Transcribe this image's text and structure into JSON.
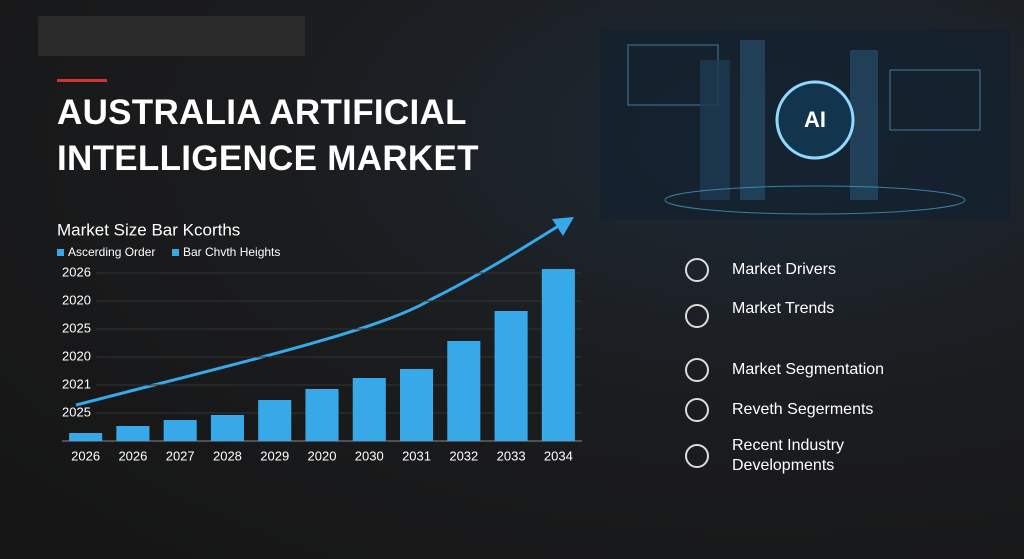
{
  "title": "AUSTRALIA ARTIFICIAL INTELLIGENCE MARKET",
  "image_label": "AI",
  "features": [
    "Market Drivers",
    "Market Trends",
    "Market Segmentation",
    "Reveth Segerments",
    "Recent Industry Developments"
  ],
  "chart_data": {
    "type": "bar",
    "title": "Market Size Bar Kcorths",
    "legend": [
      "Ascerding Order",
      "Bar Chvth Heights"
    ],
    "y_axis_labels": [
      "2026",
      "2020",
      "2025",
      "2020",
      "2021",
      "2025"
    ],
    "categories": [
      "2026",
      "2026",
      "2027",
      "2028",
      "2029",
      "2020",
      "2030",
      "2031",
      "2032",
      "2033",
      "2034"
    ],
    "values": [
      8,
      15,
      21,
      26,
      41,
      52,
      63,
      72,
      100,
      130,
      172
    ],
    "color": "#38a9e8",
    "ylim": [
      0,
      180
    ],
    "grid": true
  }
}
